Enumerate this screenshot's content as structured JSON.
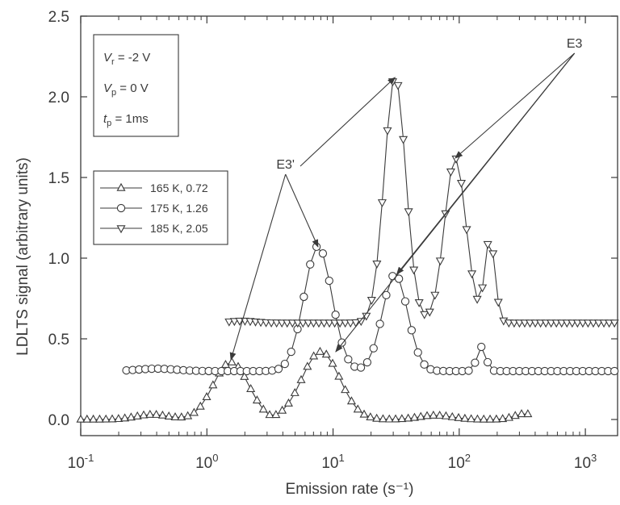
{
  "chart_data": {
    "type": "line",
    "title": "",
    "xlabel": "Emission rate (s⁻¹)",
    "ylabel": "LDLTS signal (arbitrary units)",
    "xscale": "log",
    "xlim": [
      0.1,
      1800
    ],
    "ylim": [
      -0.1,
      2.5
    ],
    "grid": false,
    "x_ticks": [
      {
        "value": 0.1,
        "base": "10",
        "exp": "-1"
      },
      {
        "value": 1,
        "base": "10",
        "exp": "0"
      },
      {
        "value": 10,
        "base": "10",
        "exp": "1"
      },
      {
        "value": 100,
        "base": "10",
        "exp": "2"
      },
      {
        "value": 1000,
        "base": "10",
        "exp": "3"
      }
    ],
    "y_ticks": [
      "0.0",
      "0.5",
      "1.0",
      "1.5",
      "2.0",
      "2.5"
    ],
    "legend": {
      "position": "middle-left",
      "entries": [
        {
          "label": "165 K, 0.72",
          "marker": "triangle-up"
        },
        {
          "label": "175 K, 1.26",
          "marker": "circle"
        },
        {
          "label": "185 K, 2.05",
          "marker": "triangle-down"
        }
      ]
    },
    "conditions": [
      {
        "sym": "V",
        "sub": "r",
        "rest": " = -2 V"
      },
      {
        "sym": "V",
        "sub": "p",
        "rest": " = 0 V"
      },
      {
        "sym": "t",
        "sub": "p",
        "rest": " = 1ms"
      }
    ],
    "annotations": [
      {
        "label": "E3'",
        "targets": [
          {
            "x": 1.55,
            "y": 0.37
          },
          {
            "x": 7.6,
            "y": 1.07
          }
        ],
        "label_anchor": {
          "x": 4.2,
          "y": 1.52
        }
      },
      {
        "label": "E3",
        "targets": [
          {
            "x": 93,
            "y": 1.62
          },
          {
            "x": 32,
            "y": 0.9
          },
          {
            "x": 10.5,
            "y": 0.42
          }
        ],
        "label_anchor": {
          "x": 820,
          "y": 2.27
        }
      },
      {
        "label": "",
        "targets": [
          {
            "x": 31,
            "y": 2.12
          }
        ],
        "label_anchor": {
          "x": 5.5,
          "y": 1.57
        }
      }
    ],
    "series": [
      {
        "name": "165 K, 0.72",
        "marker": "triangle-up",
        "baseline": 0.0,
        "x_range": [
          0.1,
          350
        ],
        "points_per_decade": 20,
        "peaks": [
          {
            "x": 0.37,
            "height": 0.03,
            "width": 0.13
          },
          {
            "x": 1.55,
            "height": 0.355,
            "width": 0.14
          },
          {
            "x": 8.0,
            "height": 0.42,
            "width": 0.15
          },
          {
            "x": 65,
            "height": 0.025,
            "width": 0.13
          },
          {
            "x": 330,
            "height": 0.035,
            "width": 0.08
          }
        ],
        "dips": [
          {
            "x": 3.2,
            "depth": 0.015,
            "width": 0.05
          }
        ]
      },
      {
        "name": "175 K, 1.26",
        "marker": "circle",
        "baseline": 0.3,
        "x_range": [
          0.23,
          1700
        ],
        "points_per_decade": 20,
        "peaks": [
          {
            "x": 0.4,
            "height": 0.015,
            "width": 0.15
          },
          {
            "x": 7.6,
            "height": 0.775,
            "width": 0.11
          },
          {
            "x": 31,
            "height": 0.6,
            "width": 0.1
          },
          {
            "x": 150,
            "height": 0.15,
            "width": 0.035
          }
        ],
        "dips": []
      },
      {
        "name": "185 K, 2.05",
        "marker": "triangle-down",
        "baseline": 0.6,
        "x_range": [
          1.5,
          1700
        ],
        "points_per_decade": 24,
        "peaks": [
          {
            "x": 1.9,
            "height": 0.012,
            "width": 0.1
          },
          {
            "x": 31,
            "height": 1.53,
            "width": 0.085
          },
          {
            "x": 93,
            "height": 1.02,
            "width": 0.085
          },
          {
            "x": 175,
            "height": 0.52,
            "width": 0.04
          }
        ],
        "dips": []
      }
    ]
  }
}
